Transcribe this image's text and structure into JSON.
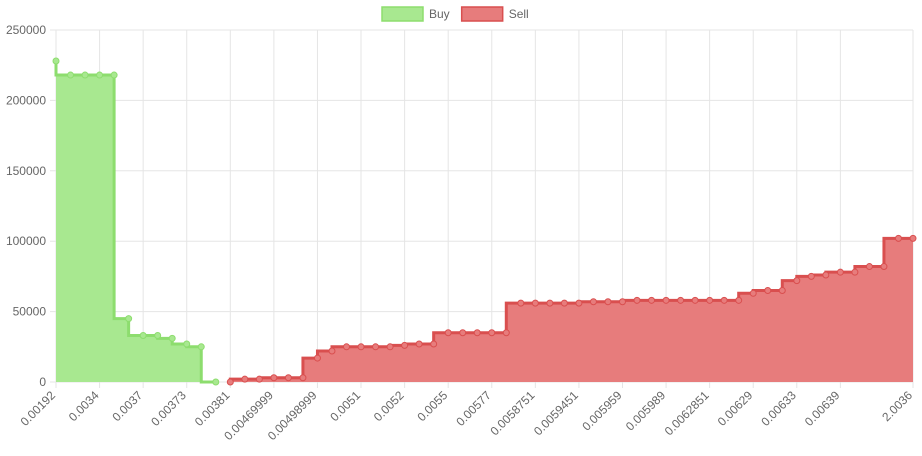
{
  "chart_data": {
    "type": "line",
    "stepped": "before",
    "grid": true,
    "legend": "top",
    "categories": [
      "0.00192",
      null,
      null,
      "0.0034",
      null,
      null,
      "0.0037",
      null,
      null,
      "0.00373",
      null,
      null,
      "0.00381",
      null,
      null,
      "0.00469999",
      null,
      null,
      "0.00498999",
      null,
      null,
      "0.0051",
      null,
      null,
      "0.0052",
      null,
      null,
      "0.0055",
      null,
      null,
      "0.00577",
      null,
      null,
      "0.0058751",
      null,
      null,
      "0.0059451",
      null,
      null,
      "0.005959",
      null,
      null,
      "0.005989",
      null,
      null,
      "0.0062851",
      null,
      null,
      "0.00629",
      null,
      null,
      "0.00633",
      null,
      null,
      "0.00639",
      null,
      null,
      null,
      null,
      "2.0036"
    ],
    "series": [
      {
        "name": "Buy",
        "color": "#8ddd6e",
        "fill": "#a8e890",
        "values": [
          228000,
          218000,
          218000,
          218000,
          218000,
          45000,
          33000,
          33000,
          31000,
          27000,
          25000,
          0,
          null,
          null,
          null,
          null,
          null,
          null,
          null,
          null,
          null,
          null,
          null,
          null,
          null,
          null,
          null,
          null,
          null,
          null,
          null,
          null,
          null,
          null,
          null,
          null,
          null,
          null,
          null,
          null,
          null,
          null,
          null,
          null,
          null,
          null,
          null,
          null,
          null,
          null,
          null,
          null,
          null,
          null,
          null,
          null,
          null,
          null,
          null,
          null
        ]
      },
      {
        "name": "Sell",
        "color": "#d94f4f",
        "fill": "#e77c7c",
        "values": [
          null,
          null,
          null,
          null,
          null,
          null,
          null,
          null,
          null,
          null,
          null,
          null,
          0,
          2000,
          2000,
          3000,
          3000,
          3000,
          17000,
          22000,
          25000,
          25000,
          25000,
          25000,
          26000,
          27000,
          27000,
          35000,
          35000,
          35000,
          35000,
          35000,
          56000,
          56000,
          56000,
          56000,
          56000,
          57000,
          57000,
          57000,
          58000,
          58000,
          58000,
          58000,
          58000,
          58000,
          58000,
          58000,
          63000,
          65000,
          65000,
          72000,
          75000,
          76000,
          78000,
          78000,
          82000,
          82000,
          102000,
          102000
        ]
      }
    ],
    "ylim": [
      0,
      250000
    ],
    "yticks": [
      0,
      50000,
      100000,
      150000,
      200000,
      250000
    ]
  }
}
